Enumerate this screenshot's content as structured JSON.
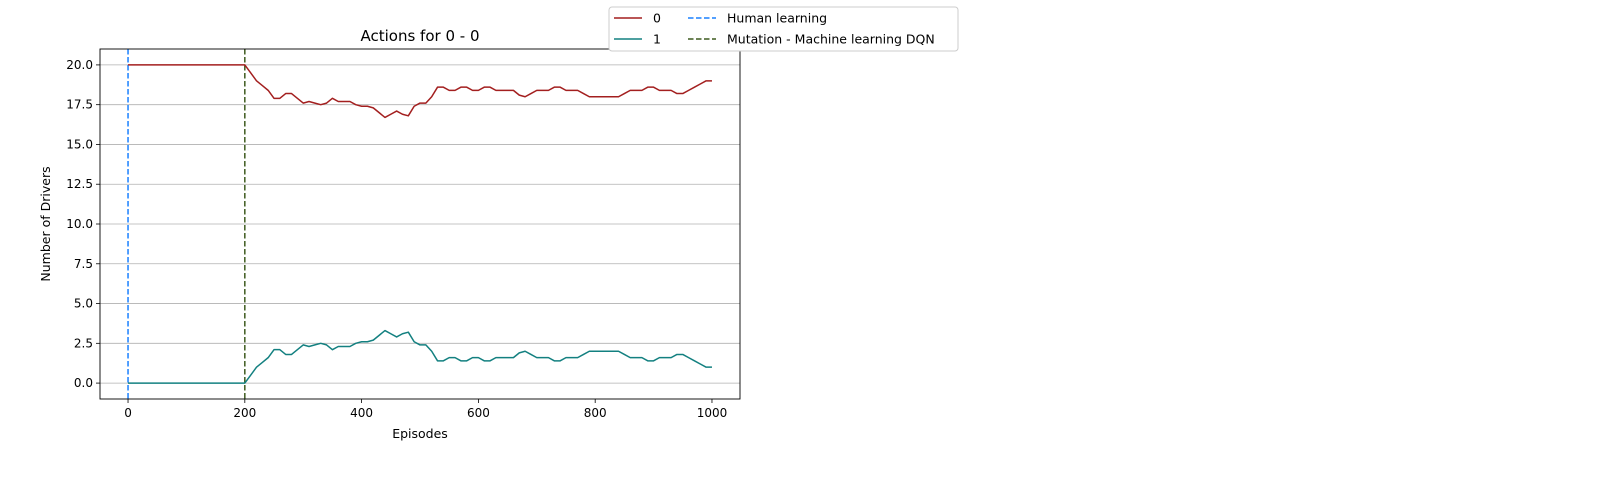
{
  "chart_data": {
    "type": "line",
    "title": "Actions for 0 - 0",
    "xlabel": "Episodes",
    "ylabel": "Number of Drivers",
    "xlim": [
      -48,
      1048
    ],
    "ylim": [
      -1,
      21
    ],
    "xticks": [
      0,
      200,
      400,
      600,
      800,
      1000
    ],
    "yticks": [
      0.0,
      2.5,
      5.0,
      7.5,
      10.0,
      12.5,
      15.0,
      17.5,
      20.0
    ],
    "xtick_labels": [
      "0",
      "200",
      "400",
      "600",
      "800",
      "1000"
    ],
    "ytick_labels": [
      "0.0",
      "2.5",
      "5.0",
      "7.5",
      "10.0",
      "12.5",
      "15.0",
      "17.5",
      "20.0"
    ],
    "grid": "horizontal",
    "legend_position": "top-right outside plot",
    "series": [
      {
        "name": "0",
        "color": "#a31f1f",
        "x": [
          0,
          200,
          210,
          220,
          230,
          240,
          250,
          260,
          270,
          280,
          290,
          300,
          310,
          320,
          330,
          340,
          350,
          360,
          370,
          380,
          390,
          400,
          410,
          420,
          430,
          440,
          450,
          460,
          470,
          480,
          490,
          500,
          510,
          520,
          530,
          540,
          550,
          560,
          570,
          580,
          590,
          600,
          610,
          620,
          630,
          640,
          650,
          660,
          670,
          680,
          690,
          700,
          710,
          720,
          730,
          740,
          750,
          760,
          770,
          780,
          790,
          800,
          810,
          820,
          830,
          840,
          850,
          860,
          870,
          880,
          890,
          900,
          910,
          920,
          930,
          940,
          950,
          960,
          970,
          980,
          990,
          1000
        ],
        "values": [
          20.0,
          20.0,
          19.5,
          19.0,
          18.7,
          18.4,
          17.9,
          17.9,
          18.2,
          18.2,
          17.9,
          17.6,
          17.7,
          17.6,
          17.5,
          17.6,
          17.9,
          17.7,
          17.7,
          17.7,
          17.5,
          17.4,
          17.4,
          17.3,
          17.0,
          16.7,
          16.9,
          17.1,
          16.9,
          16.8,
          17.4,
          17.6,
          17.6,
          18.0,
          18.6,
          18.6,
          18.4,
          18.4,
          18.6,
          18.6,
          18.4,
          18.4,
          18.6,
          18.6,
          18.4,
          18.4,
          18.4,
          18.4,
          18.1,
          18.0,
          18.2,
          18.4,
          18.4,
          18.4,
          18.6,
          18.6,
          18.4,
          18.4,
          18.4,
          18.2,
          18.0,
          18.0,
          18.0,
          18.0,
          18.0,
          18.0,
          18.2,
          18.4,
          18.4,
          18.4,
          18.6,
          18.6,
          18.4,
          18.4,
          18.4,
          18.2,
          18.2,
          18.4,
          18.6,
          18.8,
          19.0,
          19.0
        ]
      },
      {
        "name": "1",
        "color": "#138080",
        "x": [
          0,
          200,
          210,
          220,
          230,
          240,
          250,
          260,
          270,
          280,
          290,
          300,
          310,
          320,
          330,
          340,
          350,
          360,
          370,
          380,
          390,
          400,
          410,
          420,
          430,
          440,
          450,
          460,
          470,
          480,
          490,
          500,
          510,
          520,
          530,
          540,
          550,
          560,
          570,
          580,
          590,
          600,
          610,
          620,
          630,
          640,
          650,
          660,
          670,
          680,
          690,
          700,
          710,
          720,
          730,
          740,
          750,
          760,
          770,
          780,
          790,
          800,
          810,
          820,
          830,
          840,
          850,
          860,
          870,
          880,
          890,
          900,
          910,
          920,
          930,
          940,
          950,
          960,
          970,
          980,
          990,
          1000
        ],
        "values": [
          0.0,
          0.0,
          0.5,
          1.0,
          1.3,
          1.6,
          2.1,
          2.1,
          1.8,
          1.8,
          2.1,
          2.4,
          2.3,
          2.4,
          2.5,
          2.4,
          2.1,
          2.3,
          2.3,
          2.3,
          2.5,
          2.6,
          2.6,
          2.7,
          3.0,
          3.3,
          3.1,
          2.9,
          3.1,
          3.2,
          2.6,
          2.4,
          2.4,
          2.0,
          1.4,
          1.4,
          1.6,
          1.6,
          1.4,
          1.4,
          1.6,
          1.6,
          1.4,
          1.4,
          1.6,
          1.6,
          1.6,
          1.6,
          1.9,
          2.0,
          1.8,
          1.6,
          1.6,
          1.6,
          1.4,
          1.4,
          1.6,
          1.6,
          1.6,
          1.8,
          2.0,
          2.0,
          2.0,
          2.0,
          2.0,
          2.0,
          1.8,
          1.6,
          1.6,
          1.6,
          1.4,
          1.4,
          1.6,
          1.6,
          1.6,
          1.8,
          1.8,
          1.6,
          1.4,
          1.2,
          1.0,
          1.0
        ]
      }
    ],
    "vlines": [
      {
        "name": "Human learning",
        "x": 0,
        "color": "#1a80ff",
        "style": "dashed"
      },
      {
        "name": "Mutation - Machine learning DQN",
        "x": 200,
        "color": "#3d5a1e",
        "style": "dashed"
      }
    ]
  }
}
